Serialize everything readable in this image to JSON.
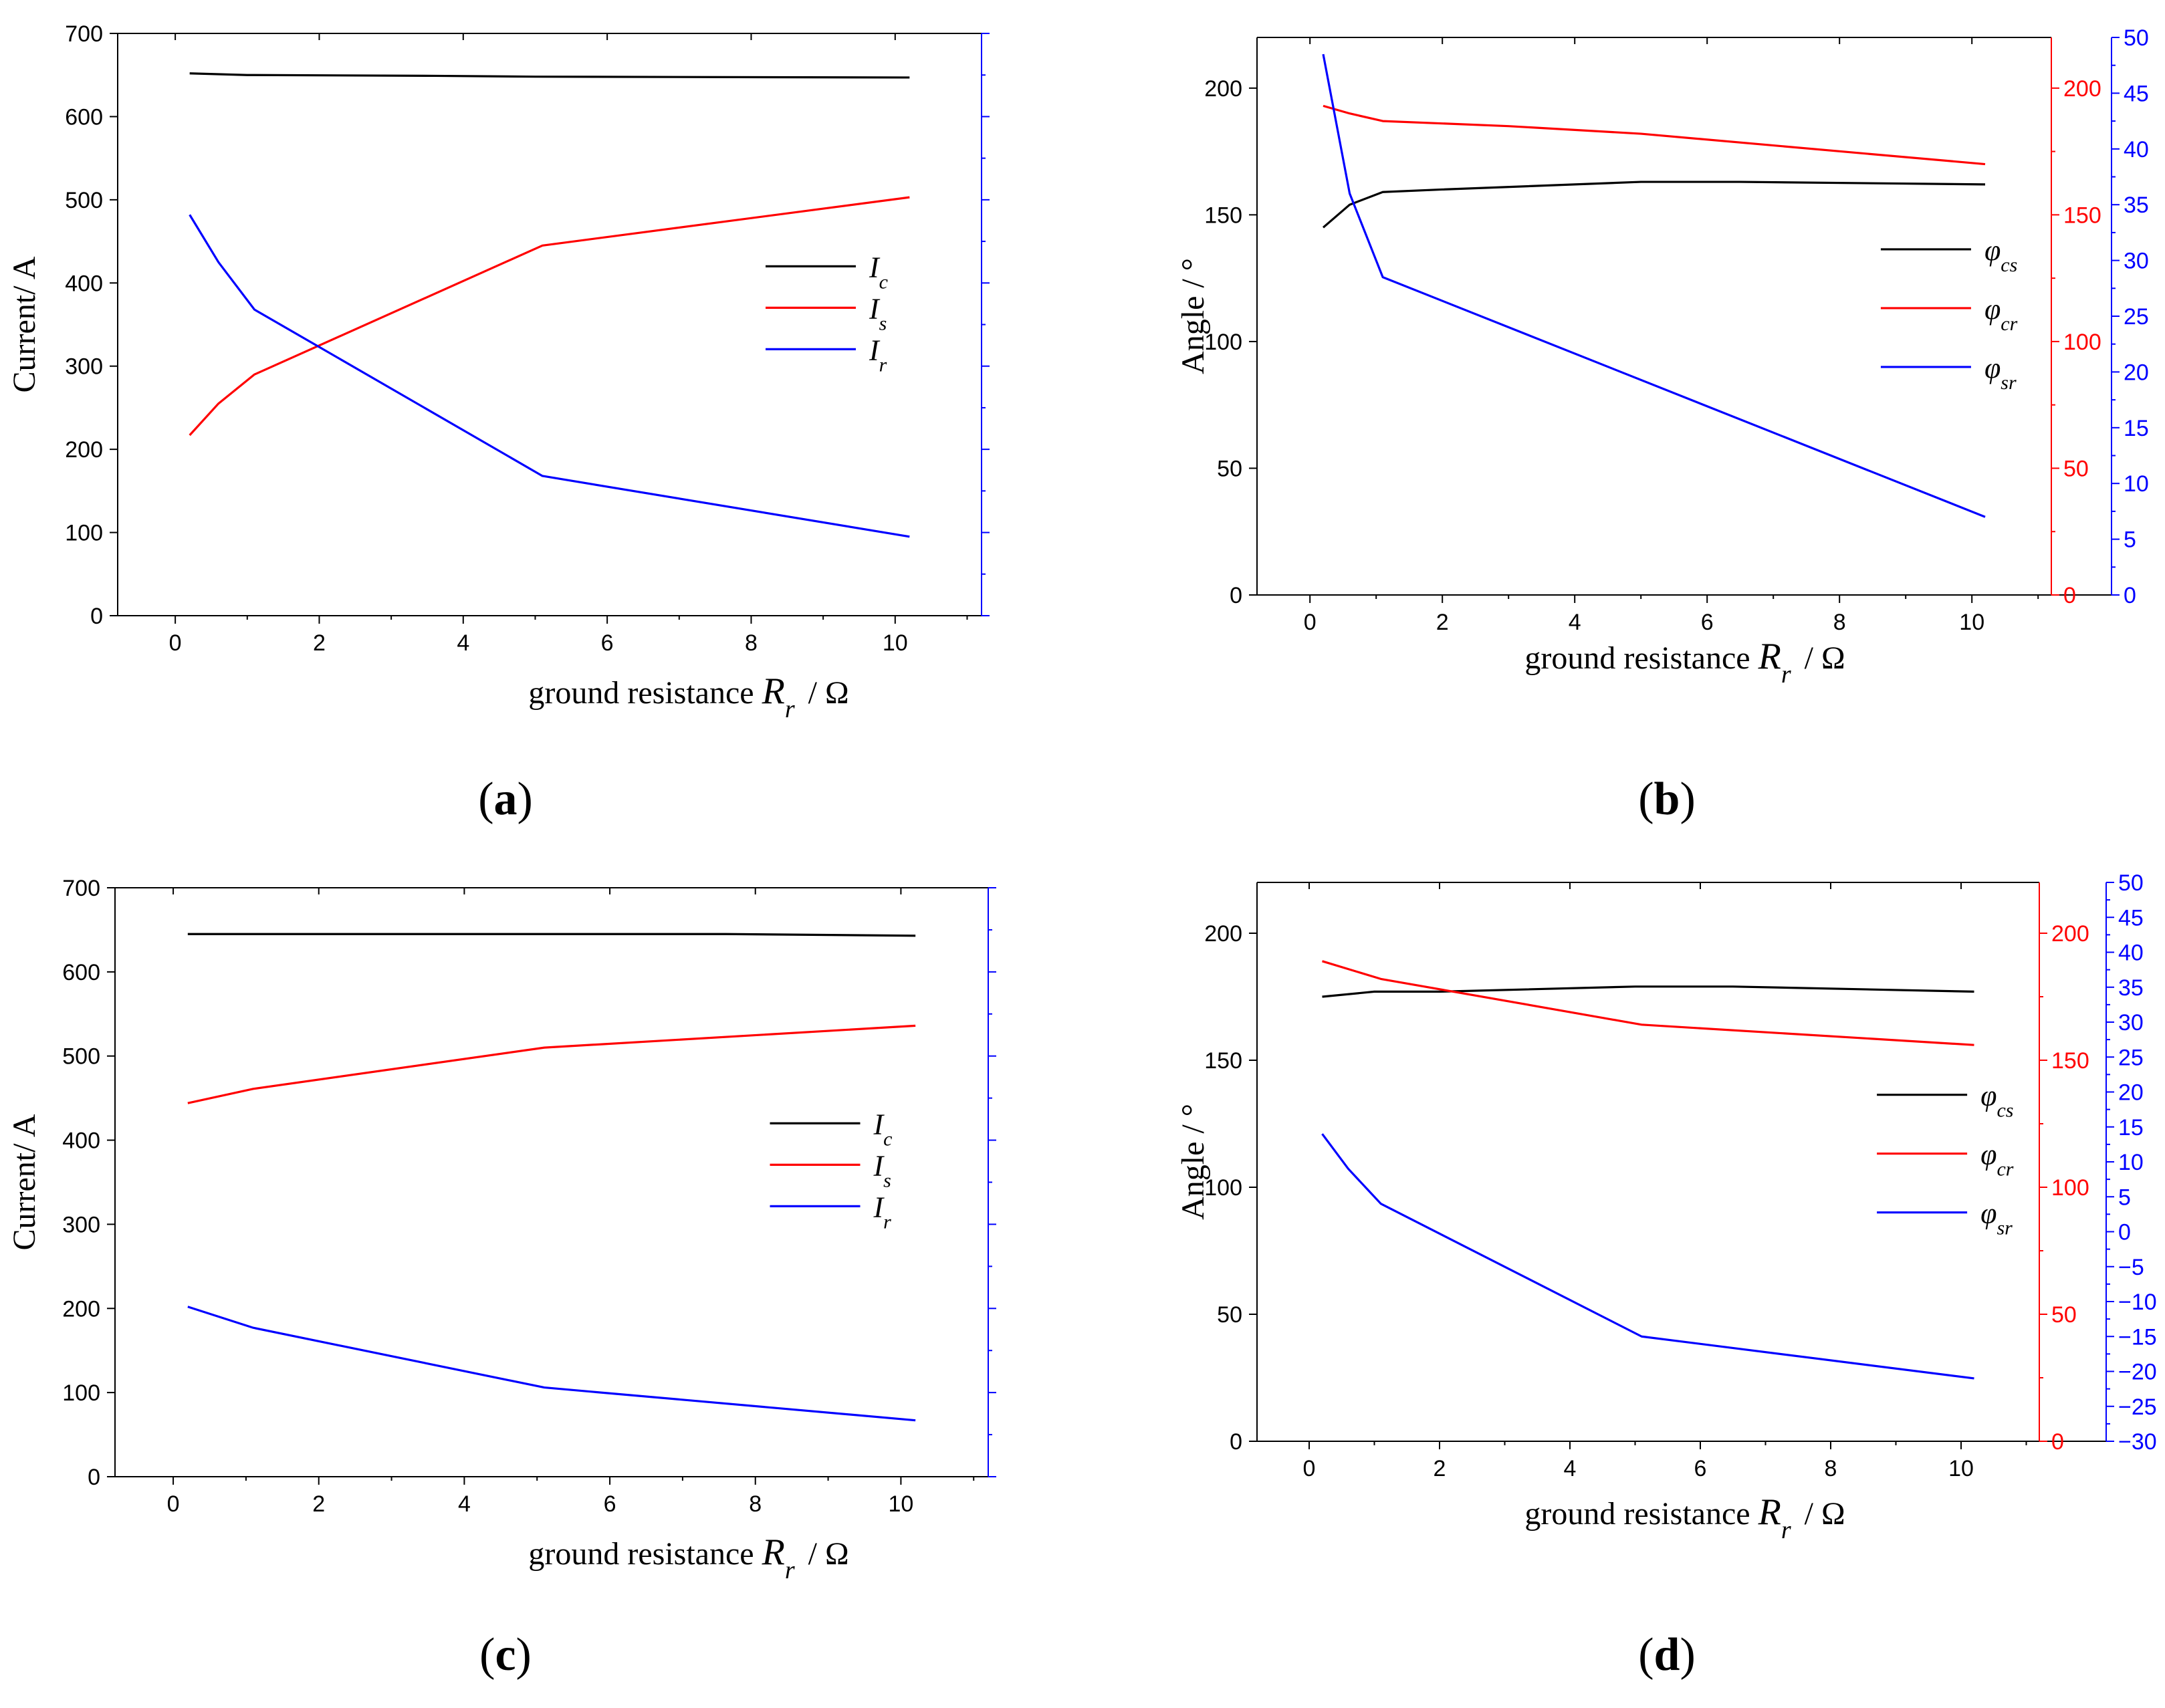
{
  "colors": {
    "ic": "#000000",
    "is": "#ff0000",
    "ir": "#0000ff",
    "axis": "#000000"
  },
  "chart_data": [
    {
      "type": "line",
      "caption": "(a)",
      "caption_letter": "a",
      "xlabel": "ground resistance",
      "xlabel_symbol": "R",
      "xlabel_sub": "r",
      "xlabel_unit": "/ Ω",
      "ylabel": "Current/ A",
      "xlim": [
        -0.8,
        11.2
      ],
      "ylim": [
        0,
        700
      ],
      "xticks": [
        0,
        2,
        4,
        6,
        8,
        10
      ],
      "yticks": [
        0,
        100,
        200,
        300,
        400,
        500,
        600,
        700
      ],
      "right_axis": {
        "color": "blue",
        "ylim": [
          0,
          700
        ],
        "ticks": [
          0,
          100,
          200,
          300,
          400,
          500,
          600,
          700
        ],
        "labeled": false
      },
      "legend_position": "center-right",
      "series": [
        {
          "name": "I",
          "sub": "c",
          "color": "#000000",
          "x": [
            0.2,
            1.0,
            3.6,
            5.0,
            10.2
          ],
          "y": [
            652,
            650,
            649,
            648,
            647
          ]
        },
        {
          "name": "I",
          "sub": "s",
          "color": "#ff0000",
          "x": [
            0.2,
            0.6,
            1.1,
            5.1,
            10.2
          ],
          "y": [
            217,
            255,
            290,
            445,
            503
          ]
        },
        {
          "name": "I",
          "sub": "r",
          "color": "#0000ff",
          "x": [
            0.2,
            0.6,
            1.1,
            5.1,
            10.2
          ],
          "y": [
            482,
            425,
            368,
            168,
            95
          ]
        }
      ]
    },
    {
      "type": "line",
      "caption": "(b)",
      "caption_letter": "b",
      "xlabel": "ground resistance",
      "xlabel_symbol": "R",
      "xlabel_sub": "r",
      "xlabel_unit": "/ Ω",
      "ylabel": "Angle / °",
      "xlim": [
        -0.8,
        11.2
      ],
      "ylim": [
        0,
        220
      ],
      "xticks": [
        0,
        2,
        4,
        6,
        8,
        10
      ],
      "yticks": [
        0,
        50,
        100,
        150,
        200
      ],
      "right_axes": [
        {
          "color": "red",
          "ylim": [
            0,
            220
          ],
          "ticks": [
            0,
            50,
            100,
            150,
            200
          ]
        },
        {
          "color": "blue",
          "ylim": [
            0,
            50
          ],
          "ticks": [
            0,
            5,
            10,
            15,
            20,
            25,
            30,
            35,
            40,
            45,
            50
          ]
        }
      ],
      "legend_position": "center-right",
      "series": [
        {
          "name": "φ",
          "sub": "cs",
          "color": "#000000",
          "axis": "left",
          "x": [
            0.2,
            0.6,
            1.1,
            2.0,
            5.0,
            6.5,
            10.2
          ],
          "y": [
            145,
            154,
            159,
            160,
            163,
            163,
            162
          ]
        },
        {
          "name": "φ",
          "sub": "cr",
          "color": "#ff0000",
          "axis": "right-red",
          "x": [
            0.2,
            0.6,
            1.1,
            3.0,
            5.0,
            10.2
          ],
          "y": [
            193,
            190,
            187,
            185,
            182,
            170
          ]
        },
        {
          "name": "φ",
          "sub": "sr",
          "color": "#0000ff",
          "axis": "right-blue",
          "x": [
            0.2,
            0.6,
            1.1,
            10.2
          ],
          "y": [
            48.5,
            36.0,
            28.5,
            7.0
          ]
        }
      ]
    },
    {
      "type": "line",
      "caption": "(c)",
      "caption_letter": "c",
      "xlabel": "ground resistance",
      "xlabel_symbol": "R",
      "xlabel_sub": "r",
      "xlabel_unit": "/ Ω",
      "ylabel": "Current/ A",
      "xlim": [
        -0.8,
        11.2
      ],
      "ylim": [
        0,
        700
      ],
      "xticks": [
        0,
        2,
        4,
        6,
        8,
        10
      ],
      "yticks": [
        0,
        100,
        200,
        300,
        400,
        500,
        600,
        700
      ],
      "right_axis": {
        "color": "blue",
        "ylim": [
          0,
          700
        ],
        "ticks": [
          0,
          100,
          200,
          300,
          400,
          500,
          600,
          700
        ],
        "labeled": false
      },
      "legend_position": "center-right",
      "series": [
        {
          "name": "I",
          "sub": "c",
          "color": "#000000",
          "x": [
            0.2,
            7.6,
            10.2
          ],
          "y": [
            645,
            645,
            643
          ]
        },
        {
          "name": "I",
          "sub": "s",
          "color": "#ff0000",
          "x": [
            0.2,
            1.1,
            5.1,
            10.2
          ],
          "y": [
            444,
            461,
            510,
            536
          ]
        },
        {
          "name": "I",
          "sub": "r",
          "color": "#0000ff",
          "x": [
            0.2,
            1.1,
            5.1,
            10.2
          ],
          "y": [
            202,
            177,
            106,
            67
          ]
        }
      ]
    },
    {
      "type": "line",
      "caption": "(d)",
      "caption_letter": "d",
      "xlabel": "ground resistance",
      "xlabel_symbol": "R",
      "xlabel_sub": "r",
      "xlabel_unit": "/ Ω",
      "ylabel": "Angle / °",
      "xlim": [
        -0.8,
        11.2
      ],
      "ylim": [
        0,
        220
      ],
      "xticks": [
        0,
        2,
        4,
        6,
        8,
        10
      ],
      "yticks": [
        0,
        50,
        100,
        150,
        200
      ],
      "right_axes": [
        {
          "color": "red",
          "ylim": [
            0,
            220
          ],
          "ticks": [
            0,
            50,
            100,
            150,
            200
          ]
        },
        {
          "color": "blue",
          "ylim": [
            -30,
            50
          ],
          "ticks": [
            -30,
            -25,
            -20,
            -15,
            -10,
            -5,
            0,
            5,
            10,
            15,
            20,
            25,
            30,
            35,
            40,
            45,
            50
          ]
        }
      ],
      "legend_position": "center-right",
      "series": [
        {
          "name": "φ",
          "sub": "cs",
          "color": "#000000",
          "axis": "left",
          "x": [
            0.2,
            1.0,
            2.0,
            5.0,
            6.5,
            10.2
          ],
          "y": [
            175,
            177,
            177,
            179,
            179,
            177
          ]
        },
        {
          "name": "φ",
          "sub": "cr",
          "color": "#ff0000",
          "axis": "right-red",
          "x": [
            0.2,
            1.1,
            5.1,
            10.2
          ],
          "y": [
            189,
            182,
            164,
            156
          ]
        },
        {
          "name": "φ",
          "sub": "sr",
          "color": "#0000ff",
          "axis": "right-blue",
          "x": [
            0.2,
            0.6,
            1.1,
            5.1,
            10.2
          ],
          "y": [
            14,
            9,
            4,
            -15,
            -21
          ]
        }
      ]
    }
  ]
}
